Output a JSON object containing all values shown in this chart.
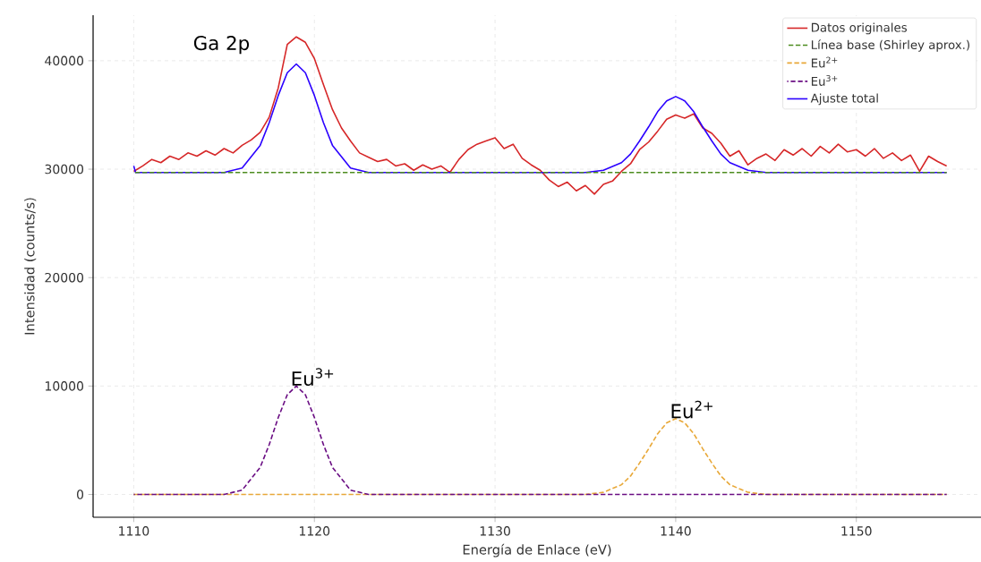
{
  "chart_data": {
    "type": "line",
    "xlabel": "Energía de Enlace (eV)",
    "ylabel": "Intensidad (counts/s)",
    "xlim": [
      1107.75,
      1156.9
    ],
    "ylim": [
      -2100,
      44200
    ],
    "xticks": [
      1110,
      1120,
      1130,
      1140,
      1150
    ],
    "yticks": [
      0,
      10000,
      20000,
      30000,
      40000
    ],
    "grid": true,
    "legend": "top right",
    "marker": "none",
    "annotations": [
      "Ga 2p",
      {
        "text": "Eu$^{3+}$",
        "x": 1119,
        "y": 10000
      },
      {
        "text": "Eu$^{2+}$",
        "x": 1140,
        "y": 7000
      }
    ],
    "series": [
      {
        "name": "Datos originales",
        "color": "#d62728",
        "line_style": "solid",
        "x": [
          1110,
          1110.5,
          1111,
          1111.5,
          1112,
          1112.5,
          1113,
          1113.5,
          1114,
          1114.5,
          1115,
          1115.5,
          1116,
          1116.5,
          1117,
          1117.5,
          1118,
          1118.5,
          1119,
          1119.5,
          1120,
          1120.5,
          1121,
          1121.5,
          1122,
          1122.5,
          1123,
          1123.5,
          1124,
          1124.5,
          1125,
          1125.5,
          1126,
          1126.5,
          1127,
          1127.5,
          1128,
          1128.5,
          1129,
          1129.5,
          1130,
          1130.5,
          1131,
          1131.5,
          1132,
          1132.5,
          1133,
          1133.5,
          1134,
          1134.5,
          1135,
          1135.5,
          1136,
          1136.5,
          1137,
          1137.5,
          1138,
          1138.5,
          1139,
          1139.5,
          1140,
          1140.5,
          1141,
          1141.5,
          1142,
          1142.5,
          1143,
          1143.5,
          1144,
          1144.5,
          1145,
          1145.5,
          1146,
          1146.5,
          1147,
          1147.5,
          1148,
          1148.5,
          1149,
          1149.5,
          1150,
          1150.5,
          1151,
          1151.5,
          1152,
          1152.5,
          1153,
          1153.5,
          1154,
          1154.5,
          1155
        ],
        "values": [
          29800,
          30300,
          30900,
          30600,
          31200,
          30900,
          31500,
          31200,
          31700,
          31300,
          31900,
          31500,
          32200,
          32700,
          33400,
          34800,
          37500,
          41500,
          42200,
          41700,
          40200,
          37800,
          35500,
          33800,
          32600,
          31500,
          31100,
          30700,
          30900,
          30300,
          30500,
          29900,
          30400,
          30000,
          30300,
          29700,
          30900,
          31800,
          32300,
          32600,
          32900,
          31900,
          32300,
          31000,
          30400,
          29900,
          29000,
          28400,
          28800,
          28000,
          28500,
          27700,
          28600,
          28900,
          29800,
          30500,
          31800,
          32500,
          33500,
          34600,
          35000,
          34700,
          35100,
          33800,
          33300,
          32400,
          31200,
          31700,
          30400,
          31000,
          31400,
          30800,
          31800,
          31300,
          31900,
          31200,
          32100,
          31500,
          32300,
          31600,
          31800,
          31200,
          31900,
          31000,
          31500,
          30800,
          31300,
          29800,
          31200,
          30700,
          30300
        ]
      },
      {
        "name": "Línea base (Shirley aprox.)",
        "color": "#4d8c1f",
        "line_style": "dashed",
        "x": [
          1110,
          1155
        ],
        "values": [
          29700,
          29700
        ]
      },
      {
        "name": "Eu$^{2+}$",
        "color": "#e8a838",
        "line_style": "dashed",
        "x": [
          1110,
          1135,
          1136,
          1137,
          1137.5,
          1138,
          1138.5,
          1139,
          1139.5,
          1140,
          1140.5,
          1141,
          1141.5,
          1142,
          1142.5,
          1143,
          1144,
          1145,
          1155
        ],
        "values": [
          0,
          0,
          200,
          900,
          1700,
          2900,
          4200,
          5600,
          6600,
          7000,
          6600,
          5600,
          4200,
          2900,
          1700,
          900,
          200,
          0,
          0
        ]
      },
      {
        "name": "Eu$^{3+}$",
        "color": "#6a0d83",
        "line_style": "dashed",
        "x": [
          1110,
          1115,
          1116,
          1117,
          1117.5,
          1118,
          1118.5,
          1119,
          1119.5,
          1120,
          1120.5,
          1121,
          1122,
          1123,
          1155
        ],
        "values": [
          0,
          0,
          400,
          2500,
          4600,
          7100,
          9200,
          10000,
          9200,
          7100,
          4600,
          2500,
          400,
          0,
          0
        ]
      },
      {
        "name": "Ajuste total",
        "color": "#2b00ff",
        "line_style": "solid",
        "x": [
          1110,
          1110.1,
          1115,
          1116,
          1117,
          1117.5,
          1118,
          1118.5,
          1119,
          1119.5,
          1120,
          1120.5,
          1121,
          1122,
          1123,
          1135,
          1136,
          1137,
          1137.5,
          1138,
          1138.5,
          1139,
          1139.5,
          1140,
          1140.5,
          1141,
          1141.5,
          1142,
          1142.5,
          1143,
          1144,
          1145,
          1155
        ],
        "values": [
          30300,
          29700,
          29700,
          30100,
          32200,
          34300,
          36800,
          38900,
          39700,
          38900,
          36800,
          34300,
          32200,
          30100,
          29700,
          29700,
          29900,
          30600,
          31400,
          32600,
          33900,
          35300,
          36300,
          36700,
          36300,
          35300,
          33900,
          32600,
          31400,
          30600,
          29900,
          29700,
          29700
        ]
      }
    ]
  }
}
